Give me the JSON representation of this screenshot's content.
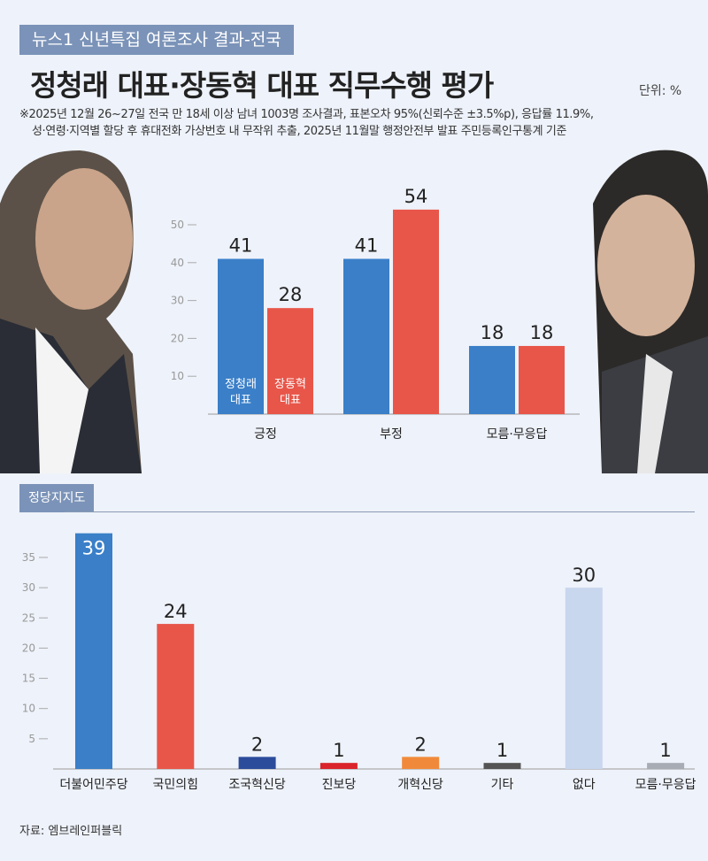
{
  "header": {
    "kicker": "뉴스1 신년특집 여론조사 결과-전국",
    "title": "정청래 대표·장동혁 대표 직무수행 평가",
    "unit": "단위: %",
    "note_line1": "※2025년 12월 26~27일 전국 만 18세 이상 남녀 1003명 조사결과, 표본오차 95%(신뢰수준 ±3.5%p), 응답률  11.9%,",
    "note_line2": "성·연령·지역별 할당 후 휴대전화 가상번호 내 무작위 추출,  2025년 11월말 행정안전부 발표 주민등록인구통계 기준"
  },
  "section2_label": "정당지지도",
  "source": "자료: 엠브레인퍼블릭",
  "logo": "뉴스1",
  "chart_data": [
    {
      "type": "bar",
      "categories": [
        "긍정",
        "부정",
        "모름·무응답"
      ],
      "series": [
        {
          "name": "정청래 대표",
          "label_lines": [
            "정청래",
            "대표"
          ],
          "color": "#3a7fc8",
          "values": [
            41,
            41,
            18
          ]
        },
        {
          "name": "장동혁 대표",
          "label_lines": [
            "장동혁",
            "대표"
          ],
          "color": "#e8564a",
          "values": [
            28,
            54,
            18
          ]
        }
      ],
      "yticks": [
        10,
        20,
        30,
        40,
        50
      ],
      "ylim": [
        0,
        55
      ]
    },
    {
      "type": "bar",
      "categories": [
        "더불어민주당",
        "국민의힘",
        "조국혁신당",
        "진보당",
        "개혁신당",
        "기타",
        "없다",
        "모름·무응답"
      ],
      "values": [
        39,
        24,
        2,
        1,
        2,
        1,
        30,
        1
      ],
      "colors": [
        "#3a7fc8",
        "#e8564a",
        "#2b4b9b",
        "#d9252b",
        "#f08a3a",
        "#555555",
        "#c8d6ee",
        "#a8acb4"
      ],
      "yticks": [
        5,
        10,
        15,
        20,
        25,
        30,
        35
      ],
      "ylim": [
        0,
        40
      ]
    }
  ]
}
